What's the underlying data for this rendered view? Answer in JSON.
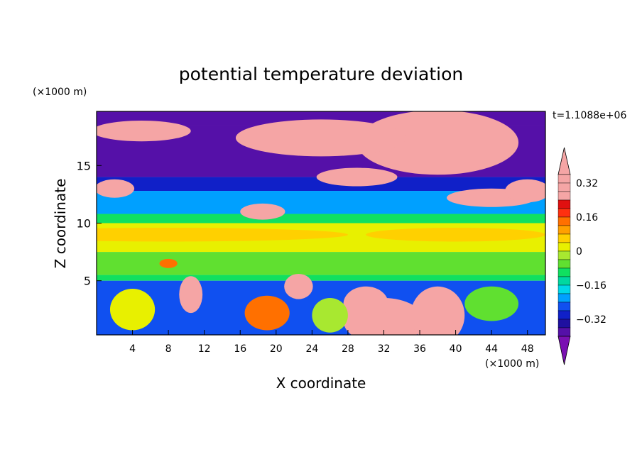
{
  "chart_data": {
    "type": "heatmap",
    "title": "potential temperature deviation",
    "xlabel": "X coordinate",
    "ylabel": "Z coordinate",
    "x_unit": "(×1000 m)",
    "y_unit": "(×1000 m)",
    "time_label": "t=1.1088e+06",
    "xlim": [
      0,
      50
    ],
    "ylim": [
      0.3,
      19.7
    ],
    "x_ticks": [
      "4",
      "8",
      "12",
      "16",
      "20",
      "24",
      "28",
      "32",
      "36",
      "40",
      "44",
      "48"
    ],
    "x_tick_values": [
      4,
      8,
      12,
      16,
      20,
      24,
      28,
      32,
      36,
      40,
      44,
      48
    ],
    "y_ticks": [
      "5",
      "10",
      "15"
    ],
    "y_tick_values": [
      5,
      10,
      15
    ],
    "colorbar": {
      "levels": [
        -0.4,
        -0.36,
        -0.32,
        -0.28,
        -0.24,
        -0.2,
        -0.16,
        -0.12,
        -0.08,
        -0.04,
        0,
        0.04,
        0.08,
        0.12,
        0.16,
        0.2,
        0.24,
        0.28,
        0.32,
        0.36
      ],
      "labels": [
        "0.32",
        "0.16",
        "0",
        "−0.16",
        "−0.32"
      ],
      "label_values": [
        0.32,
        0.16,
        0,
        -0.16,
        -0.32
      ],
      "colors": [
        "#7a10b2",
        "#5510a8",
        "#1f10a0",
        "#1020c8",
        "#1050f0",
        "#00a0ff",
        "#00d8e8",
        "#00d8a0",
        "#10e060",
        "#60e030",
        "#a8e830",
        "#e8f000",
        "#ffd000",
        "#ffa000",
        "#ff7000",
        "#ff3010",
        "#e01010",
        "#f5a5a5"
      ]
    },
    "field_bands": [
      {
        "z": [
          18.5,
          19.7
        ],
        "value": -0.38
      },
      {
        "z": [
          14.0,
          18.5
        ],
        "value": -0.4
      },
      {
        "z": [
          12.8,
          14.0
        ],
        "value": -0.3
      },
      {
        "z": [
          10.8,
          12.8
        ],
        "value": -0.22
      },
      {
        "z": [
          10.0,
          10.8
        ],
        "value": -0.1
      },
      {
        "z": [
          7.5,
          10.0
        ],
        "value": 0.02
      },
      {
        "z": [
          5.5,
          7.5
        ],
        "value": -0.05
      },
      {
        "z": [
          5.0,
          5.5
        ],
        "value": -0.12
      },
      {
        "z": [
          0.3,
          5.0
        ],
        "value": -0.28
      }
    ],
    "anomalies": [
      {
        "x": 38,
        "z": 17.0,
        "rx": 9.0,
        "rz": 2.8,
        "value": 0.4
      },
      {
        "x": 25,
        "z": 17.4,
        "rx": 9.5,
        "rz": 1.6,
        "value": 0.4
      },
      {
        "x": 5,
        "z": 18.0,
        "rx": 5.5,
        "rz": 0.9,
        "value": 0.4
      },
      {
        "x": 29,
        "z": 14.0,
        "rx": 4.5,
        "rz": 0.8,
        "value": 0.4
      },
      {
        "x": 44,
        "z": 12.2,
        "rx": 5.0,
        "rz": 0.8,
        "value": 0.4
      },
      {
        "x": 48,
        "z": 12.8,
        "rx": 2.5,
        "rz": 1.0,
        "value": 0.4
      },
      {
        "x": 2,
        "z": 13.0,
        "rx": 2.2,
        "rz": 0.8,
        "value": 0.4
      },
      {
        "x": 18.5,
        "z": 11.0,
        "rx": 2.5,
        "rz": 0.7,
        "value": 0.4
      },
      {
        "x": 10.5,
        "z": 3.8,
        "rx": 1.3,
        "rz": 1.6,
        "value": 0.4
      },
      {
        "x": 22.5,
        "z": 4.5,
        "rx": 1.6,
        "rz": 1.1,
        "value": 0.4
      },
      {
        "x": 32,
        "z": 1.5,
        "rx": 4.5,
        "rz": 2.0,
        "value": 0.24
      },
      {
        "x": 38,
        "z": 2.0,
        "rx": 3.0,
        "rz": 2.5,
        "value": 0.4
      },
      {
        "x": 30,
        "z": 3.0,
        "rx": 2.5,
        "rz": 1.5,
        "value": 0.3
      },
      {
        "x": 19,
        "z": 2.2,
        "rx": 2.5,
        "rz": 1.5,
        "value": 0.12
      },
      {
        "x": 4,
        "z": 2.5,
        "rx": 2.5,
        "rz": 1.8,
        "value": 0.02
      },
      {
        "x": 26,
        "z": 2.0,
        "rx": 2.0,
        "rz": 1.5,
        "value": -0.02
      },
      {
        "x": 44,
        "z": 3.0,
        "rx": 3.0,
        "rz": 1.5,
        "value": -0.06
      },
      {
        "x": 8,
        "z": 6.5,
        "rx": 1.0,
        "rz": 0.4,
        "value": 0.12
      },
      {
        "x": 8,
        "z": 9.0,
        "rx": 20.0,
        "rz": 0.6,
        "value": 0.06
      },
      {
        "x": 40,
        "z": 9.0,
        "rx": 10.0,
        "rz": 0.6,
        "value": 0.06
      }
    ]
  }
}
